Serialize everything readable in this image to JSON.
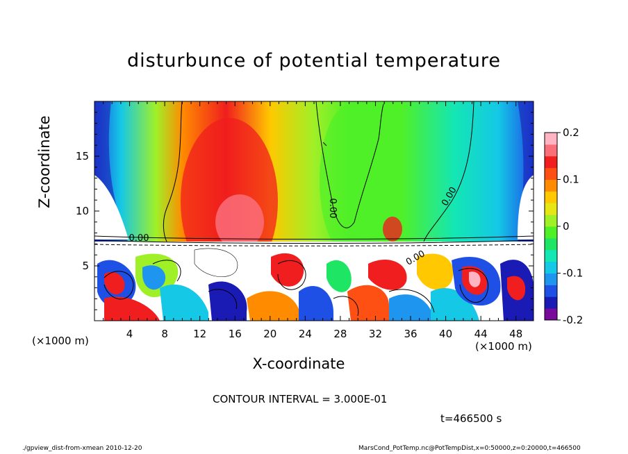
{
  "chart_data": {
    "type": "heatmap",
    "title": "disturbunce of potential temperature",
    "xlabel": "X-coordinate",
    "ylabel": "Z-coordinate",
    "x_unit_left": "(×1000 m)",
    "x_unit_right": "(×1000 m)",
    "xlim": [
      0,
      50
    ],
    "ylim": [
      0,
      20
    ],
    "x_ticks": [
      4,
      8,
      12,
      16,
      20,
      24,
      28,
      32,
      36,
      40,
      44,
      48
    ],
    "y_ticks": [
      5,
      10,
      15
    ],
    "colorbar": {
      "range": [
        -0.2,
        0.2
      ],
      "tick_labels": [
        "0.2",
        "0.1",
        "0",
        "-0.1",
        "-0.2"
      ],
      "tick_values": [
        0.2,
        0.1,
        0,
        -0.1,
        -0.2
      ],
      "colors": [
        "#7a0a9a",
        "#1a1ab4",
        "#1e50e6",
        "#1e96f0",
        "#14c8e6",
        "#14e6b4",
        "#1ee664",
        "#50f028",
        "#a0f028",
        "#e6e614",
        "#ffc800",
        "#ff8c00",
        "#ff5014",
        "#f01e1e",
        "#fa6e7a",
        "#ffb4c3"
      ]
    },
    "contour_labels": [
      "0.00",
      "0.00",
      "0.00",
      "0.00"
    ],
    "contour_interval": "CONTOUR INTERVAL = 3.000E-01",
    "time": "t=466500  s"
  },
  "footer": {
    "left": "./gpview_dist-from-xmean  2010-12-20",
    "right": "MarsCond_PotTemp.nc@PotTempDist,x=0:50000,z=0:20000,t=466500"
  }
}
